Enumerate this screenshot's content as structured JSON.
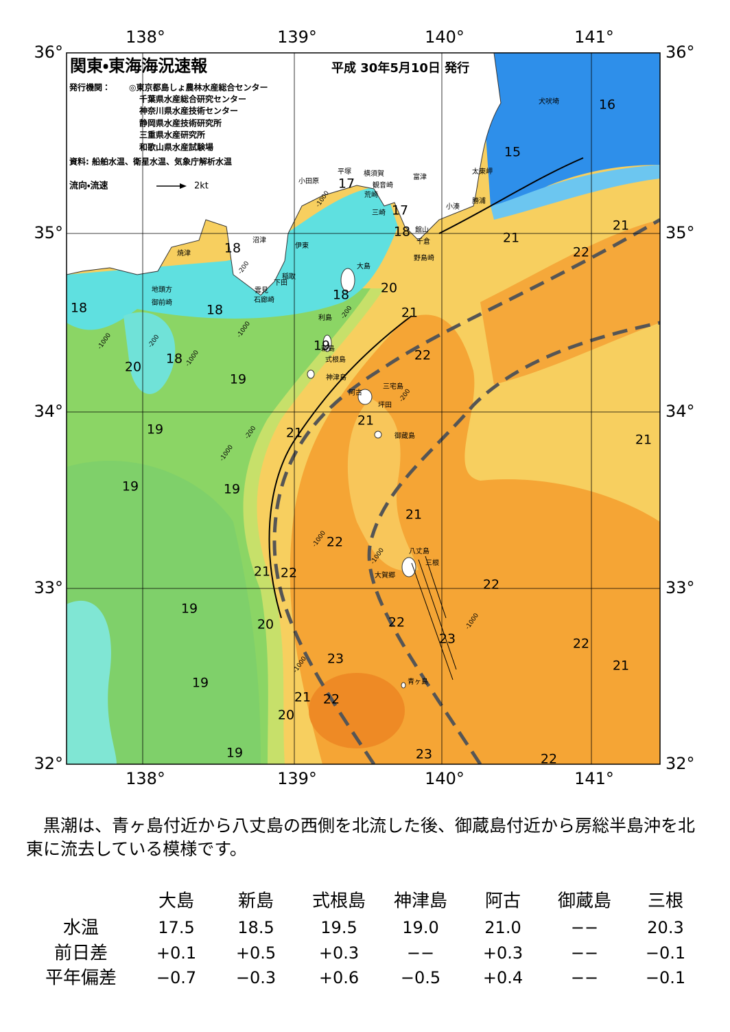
{
  "header": {
    "title": "関東・東海海況速報",
    "date": "平成 30年5月10日 発行",
    "publisher_label": "発行機関：",
    "publishers": [
      "◎東京都島しょ農林水産総合センター",
      "千葉県水産総合研究センター",
      "神奈川県水産技術センター",
      "静岡県水産技術研究所",
      "三重県水産研究所",
      "和歌山県水産試験場"
    ],
    "sources": "資料: 船舶水温、衛星水温、気象庁解析水温",
    "flow_label": "流向・流速",
    "flow_scale": "2kt"
  },
  "map": {
    "lon_labels": [
      "138°",
      "139°",
      "140°",
      "141°"
    ],
    "lat_labels": [
      "36°",
      "35°",
      "34°",
      "33°",
      "32°"
    ],
    "places": [
      "犬吠埼",
      "太東岬",
      "勝浦",
      "小湊",
      "富津",
      "横須賀",
      "観音崎",
      "平塚",
      "小田原",
      "荒崎",
      "三崎",
      "館山",
      "千倉",
      "野島崎",
      "沼津",
      "伊東",
      "焼津",
      "稲取",
      "下田",
      "雲見",
      "石廊崎",
      "地頭方",
      "御前崎",
      "大島",
      "利島",
      "新島",
      "式根島",
      "神津島",
      "三宅島",
      "阿古",
      "坪田",
      "御蔵島",
      "八丈島",
      "三根",
      "大賀郷",
      "青ヶ島"
    ],
    "temps": [
      "17",
      "17",
      "18",
      "16",
      "15",
      "21",
      "21",
      "22",
      "18",
      "18",
      "18",
      "18",
      "20",
      "21",
      "19",
      "18",
      "20",
      "22",
      "19",
      "21",
      "19",
      "21",
      "21",
      "19",
      "19",
      "21",
      "22",
      "21",
      "22",
      "22",
      "19",
      "20",
      "22",
      "23",
      "22",
      "23",
      "21",
      "19",
      "21",
      "22",
      "20",
      "19",
      "23",
      "22"
    ],
    "depths": [
      "-1000",
      "-200",
      "-1000",
      "-200",
      "-1000",
      "-200",
      "-1000",
      "-200",
      "-1000",
      "-1000",
      "-1000",
      "-200",
      "-1000",
      "-1000"
    ]
  },
  "description": "黒潮は、青ヶ島付近から八丈島の西側を北流した後、御蔵島付近から房総半島沖を北東に流去している模様です。",
  "table": {
    "columns": [
      "大島",
      "新島",
      "式根島",
      "神津島",
      "阿古",
      "御蔵島",
      "三根"
    ],
    "rows": [
      {
        "label": "水温",
        "cells": [
          "17.5",
          "18.5",
          "19.5",
          "19.0",
          "21.0",
          "−−",
          "20.3"
        ]
      },
      {
        "label": "前日差",
        "cells": [
          "+0.1",
          "+0.5",
          "+0.3",
          "−−",
          "+0.3",
          "−−",
          "−0.1"
        ]
      },
      {
        "label": "平年偏差",
        "cells": [
          "−0.7",
          "−0.3",
          "+0.6",
          "−0.5",
          "+0.4",
          "−−",
          "−0.1"
        ]
      }
    ]
  }
}
